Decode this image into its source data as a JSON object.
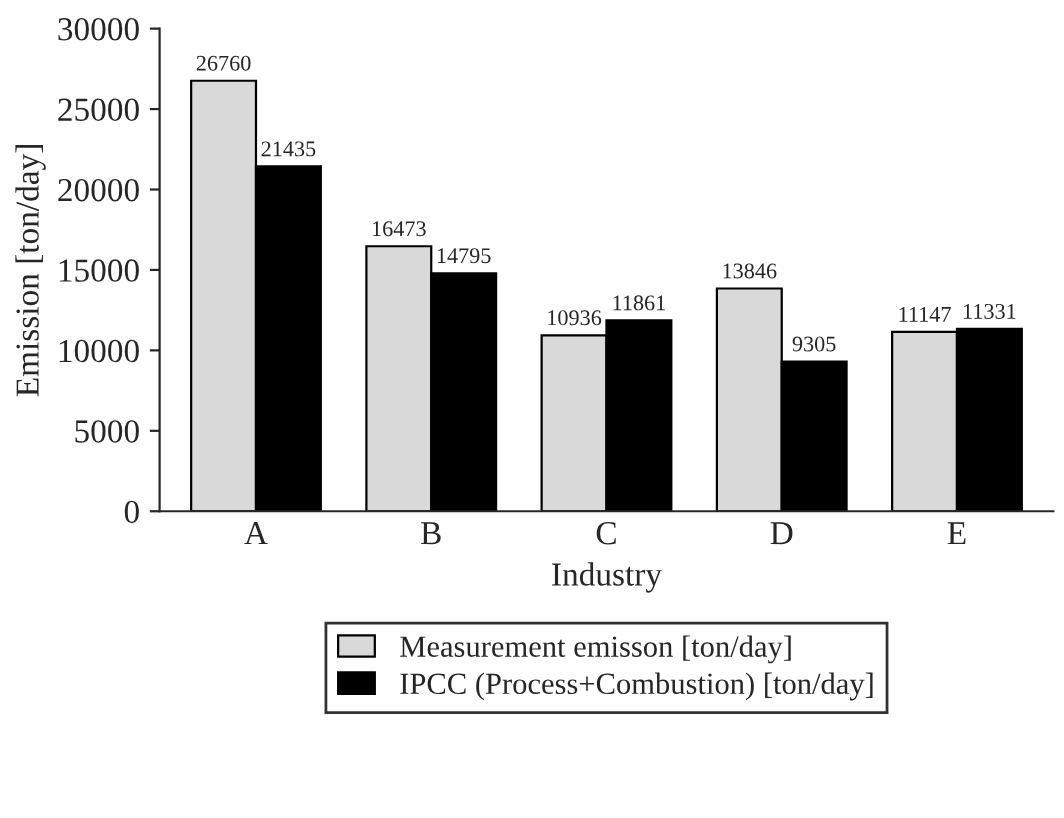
{
  "chart_data": {
    "type": "bar",
    "xlabel": "Industry",
    "ylabel": "Emission [ton/day]",
    "categories": [
      "A",
      "B",
      "C",
      "D",
      "E"
    ],
    "series": [
      {
        "name": "Measurement emisson [ton/day]",
        "color": "#d9d9d9",
        "values": [
          26760,
          16473,
          10936,
          13846,
          11147
        ]
      },
      {
        "name": "IPCC (Process+Combustion) [ton/day]",
        "color": "#000000",
        "values": [
          21435,
          14795,
          11861,
          9305,
          11331
        ]
      }
    ],
    "ylim": [
      0,
      30000
    ],
    "yticks": [
      0,
      5000,
      10000,
      15000,
      20000,
      25000,
      30000
    ],
    "grid": false,
    "legend": "bottom",
    "data_labels": true
  }
}
